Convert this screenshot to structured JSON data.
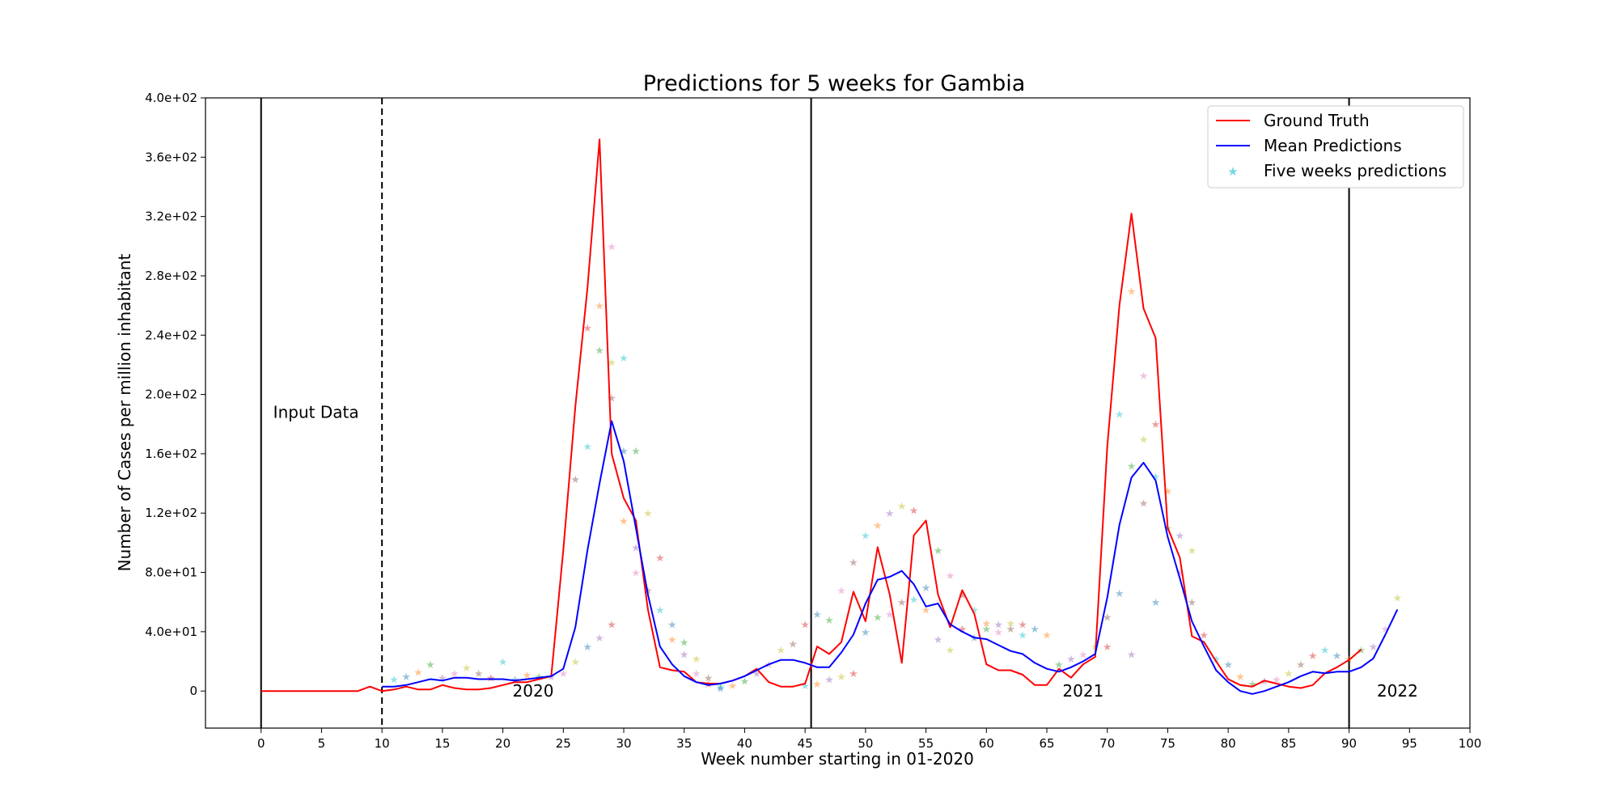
{
  "chart_data": {
    "type": "line",
    "title": "Predictions for 5 weeks for Gambia",
    "xlabel": "Week number starting in 01-2020",
    "ylabel": "Number of Cases per million inhabitant",
    "xlim": [
      -4.6,
      100
    ],
    "ylim": [
      -25,
      400
    ],
    "xticks": [
      0,
      5,
      10,
      15,
      20,
      25,
      30,
      35,
      40,
      45,
      50,
      55,
      60,
      65,
      70,
      75,
      80,
      85,
      90,
      95,
      100
    ],
    "yticks": [
      0,
      40,
      80,
      120,
      160,
      200,
      240,
      280,
      320,
      360,
      400
    ],
    "ytick_labels": [
      "0",
      "4.0e+01",
      "8.0e+01",
      "1.2e+02",
      "1.6e+02",
      "2.0e+02",
      "2.4e+02",
      "2.8e+02",
      "3.2e+02",
      "3.6e+02",
      "4.0e+02"
    ],
    "legend_position": "top-right",
    "legend": [
      "Ground Truth",
      "Mean Predictions",
      "Five weeks predictions"
    ],
    "colors": {
      "ground_truth": "#ff0000",
      "mean_predictions": "#0000ff",
      "five_weeks": "#17becf"
    },
    "vlines": [
      {
        "x": 0,
        "style": "solid"
      },
      {
        "x": 10,
        "style": "dashed"
      },
      {
        "x": 45.5,
        "style": "solid"
      },
      {
        "x": 90,
        "style": "solid"
      }
    ],
    "annotations": [
      {
        "text": "Input Data",
        "x": 1,
        "y": 188
      },
      {
        "text": "2020",
        "x": 20.8,
        "y": 0
      },
      {
        "text": "2021",
        "x": 66.3,
        "y": 0
      },
      {
        "text": "2022",
        "x": 92.3,
        "y": 0
      }
    ],
    "series": [
      {
        "name": "Ground Truth",
        "x": [
          0,
          1,
          2,
          3,
          4,
          5,
          6,
          7,
          8,
          9,
          10,
          11,
          12,
          13,
          14,
          15,
          16,
          17,
          18,
          19,
          20,
          21,
          22,
          23,
          24,
          25,
          26,
          27,
          28,
          29,
          30,
          31,
          32,
          33,
          34,
          35,
          36,
          37,
          38,
          39,
          40,
          41,
          42,
          43,
          44,
          45,
          46,
          47,
          48,
          49,
          50,
          51,
          52,
          53,
          54,
          55,
          56,
          57,
          58,
          59,
          60,
          61,
          62,
          63,
          64,
          65,
          66,
          67,
          68,
          69,
          70,
          71,
          72,
          73,
          74,
          75,
          76,
          77,
          78,
          79,
          80,
          81,
          82,
          83,
          84,
          85,
          86,
          87,
          88,
          89,
          90,
          91
        ],
        "y": [
          0,
          0,
          0,
          0,
          0,
          0,
          0,
          0,
          0,
          3,
          0,
          1,
          3,
          1,
          1,
          4,
          2,
          1,
          1,
          2,
          4,
          6,
          6,
          8,
          10,
          95,
          192,
          272,
          372,
          160,
          130,
          115,
          55,
          16,
          14,
          13,
          6,
          5,
          5,
          7,
          10,
          15,
          6,
          3,
          3,
          5,
          30,
          25,
          33,
          67,
          47,
          97,
          65,
          19,
          105,
          115,
          65,
          43,
          68,
          52,
          18,
          14,
          14,
          11,
          4,
          4,
          15,
          9,
          18,
          23,
          165,
          260,
          322,
          258,
          238,
          110,
          90,
          37,
          33,
          20,
          8,
          4,
          3,
          7,
          5,
          3,
          2,
          4,
          12,
          16,
          21,
          28
        ]
      },
      {
        "name": "Mean Predictions",
        "x": [
          10,
          11,
          12,
          13,
          14,
          15,
          16,
          17,
          18,
          19,
          20,
          21,
          22,
          23,
          24,
          25,
          26,
          27,
          28,
          29,
          30,
          31,
          32,
          33,
          34,
          35,
          36,
          37,
          38,
          39,
          40,
          41,
          42,
          43,
          44,
          45,
          46,
          47,
          48,
          49,
          50,
          51,
          52,
          53,
          54,
          55,
          56,
          57,
          58,
          59,
          60,
          61,
          62,
          63,
          64,
          65,
          66,
          67,
          68,
          69,
          70,
          71,
          72,
          73,
          74,
          75,
          76,
          77,
          78,
          79,
          80,
          81,
          82,
          83,
          84,
          85,
          86,
          87,
          88,
          89,
          90,
          91,
          92,
          93,
          94
        ],
        "y": [
          3,
          3,
          4,
          6,
          8,
          7,
          9,
          9,
          8,
          8,
          8,
          7,
          8,
          9,
          10,
          15,
          43,
          95,
          140,
          182,
          155,
          110,
          65,
          30,
          18,
          10,
          6,
          4,
          5,
          7,
          10,
          14,
          18,
          21,
          21,
          19,
          16,
          16,
          26,
          38,
          59,
          75,
          77,
          81,
          72,
          57,
          59,
          45,
          40,
          36,
          35,
          31,
          27,
          25,
          19,
          15,
          13,
          16,
          20,
          25,
          63,
          112,
          144,
          154,
          142,
          104,
          76,
          47,
          30,
          14,
          6,
          0,
          -2,
          0,
          3,
          6,
          10,
          13,
          12,
          13,
          13,
          16,
          22,
          38,
          55
        ]
      },
      {
        "name": "Five weeks predictions",
        "x": [
          11,
          12,
          13,
          14,
          15,
          16,
          17,
          18,
          19,
          20,
          21,
          22,
          23,
          24,
          25,
          26,
          26,
          27,
          27,
          27,
          28,
          28,
          28,
          29,
          29,
          29,
          29,
          30,
          30,
          30,
          31,
          31,
          31,
          32,
          32,
          33,
          33,
          34,
          34,
          35,
          35,
          36,
          36,
          37,
          37,
          38,
          38,
          39,
          40,
          41,
          42,
          43,
          44,
          45,
          45,
          46,
          46,
          47,
          47,
          48,
          48,
          49,
          49,
          50,
          50,
          51,
          51,
          52,
          52,
          53,
          53,
          54,
          54,
          55,
          55,
          56,
          56,
          57,
          57,
          58,
          58,
          59,
          59,
          60,
          60,
          61,
          61,
          62,
          62,
          63,
          63,
          64,
          65,
          66,
          67,
          68,
          69,
          70,
          70,
          71,
          71,
          72,
          72,
          72,
          73,
          73,
          73,
          74,
          74,
          74,
          75,
          75,
          76,
          76,
          77,
          77,
          78,
          79,
          80,
          81,
          82,
          83,
          84,
          85,
          86,
          87,
          88,
          89,
          90,
          91,
          92,
          93,
          94
        ],
        "y": [
          8,
          10,
          13,
          18,
          9,
          12,
          16,
          12,
          9,
          20,
          8,
          11,
          10,
          10,
          12,
          20,
          143,
          245,
          165,
          30,
          260,
          230,
          36,
          300,
          222,
          198,
          45,
          225,
          162,
          115,
          162,
          97,
          80,
          120,
          68,
          90,
          55,
          45,
          35,
          33,
          25,
          12,
          22,
          9,
          5,
          3,
          2,
          4,
          7,
          12,
          18,
          28,
          32,
          45,
          4,
          52,
          5,
          48,
          8,
          68,
          10,
          87,
          12,
          105,
          40,
          112,
          50,
          120,
          52,
          125,
          60,
          122,
          62,
          70,
          55,
          95,
          35,
          78,
          28,
          65,
          42,
          55,
          36,
          46,
          42,
          45,
          40,
          46,
          42,
          45,
          38,
          42,
          38,
          18,
          22,
          25,
          30,
          50,
          30,
          187,
          66,
          270,
          152,
          25,
          213,
          170,
          127,
          180,
          145,
          60,
          135,
          110,
          105,
          80,
          95,
          60,
          38,
          22,
          18,
          10,
          5,
          7,
          8,
          12,
          18,
          24,
          28,
          24,
          22,
          28,
          30,
          42,
          63
        ]
      }
    ]
  }
}
